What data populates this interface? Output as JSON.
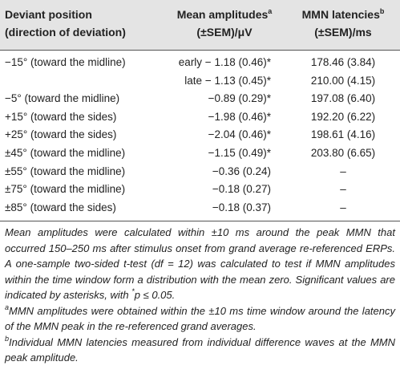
{
  "table": {
    "header": [
      [
        "Deviant position",
        "(direction of deviation)"
      ],
      [
        "Mean amplitudes",
        "a",
        "(±SEM)/μV"
      ],
      [
        "MMN latencies",
        "b",
        "(±SEM)/ms"
      ]
    ],
    "rows": [
      [
        "−15° (toward the midline)",
        "early − 1.18 (0.46)*",
        "178.46 (3.84)"
      ],
      [
        null,
        "late − 1.13 (0.45)*",
        "210.00 (4.15)"
      ],
      [
        "−5° (toward the midline)",
        "−0.89 (0.29)*",
        "197.08 (6.40)"
      ],
      [
        "+15° (toward the sides)",
        "−1.98 (0.46)*",
        "192.20 (6.22)"
      ],
      [
        "+25° (toward the sides)",
        "−2.04 (0.46)*",
        "198.61 (4.16)"
      ],
      [
        "±45° (toward the midline)",
        "−1.15 (0.49)*",
        "203.80 (6.65)"
      ],
      [
        "±55° (toward the midline)",
        "−0.36 (0.24)",
        "–"
      ],
      [
        "±75° (toward the midline)",
        "−0.18 (0.27)",
        "–"
      ],
      [
        "±85° (toward the sides)",
        "−0.18 (0.37)",
        "–"
      ]
    ]
  },
  "notes": {
    "main": "Mean amplitudes were calculated within ±10 ms around the peak MMN that occurred 150–250 ms after stimulus onset from grand average re-referenced ERPs. A one-sample two-sided t-test (df = 12) was calculated to test if MMN amplitudes within the time window form a distribution with the mean zero. Significant values are indicated by asterisks, with ",
    "main_sup": "*",
    "main_end": "p ≤ 0.05.",
    "a_mark": "a",
    "a_text": "MMN amplitudes were obtained within the ±10 ms time window around the latency of the MMN peak in the re-referenced grand averages.",
    "b_mark": "b",
    "b_text": "Individual MMN latencies measured from individual difference waves at the MMN peak amplitude."
  }
}
